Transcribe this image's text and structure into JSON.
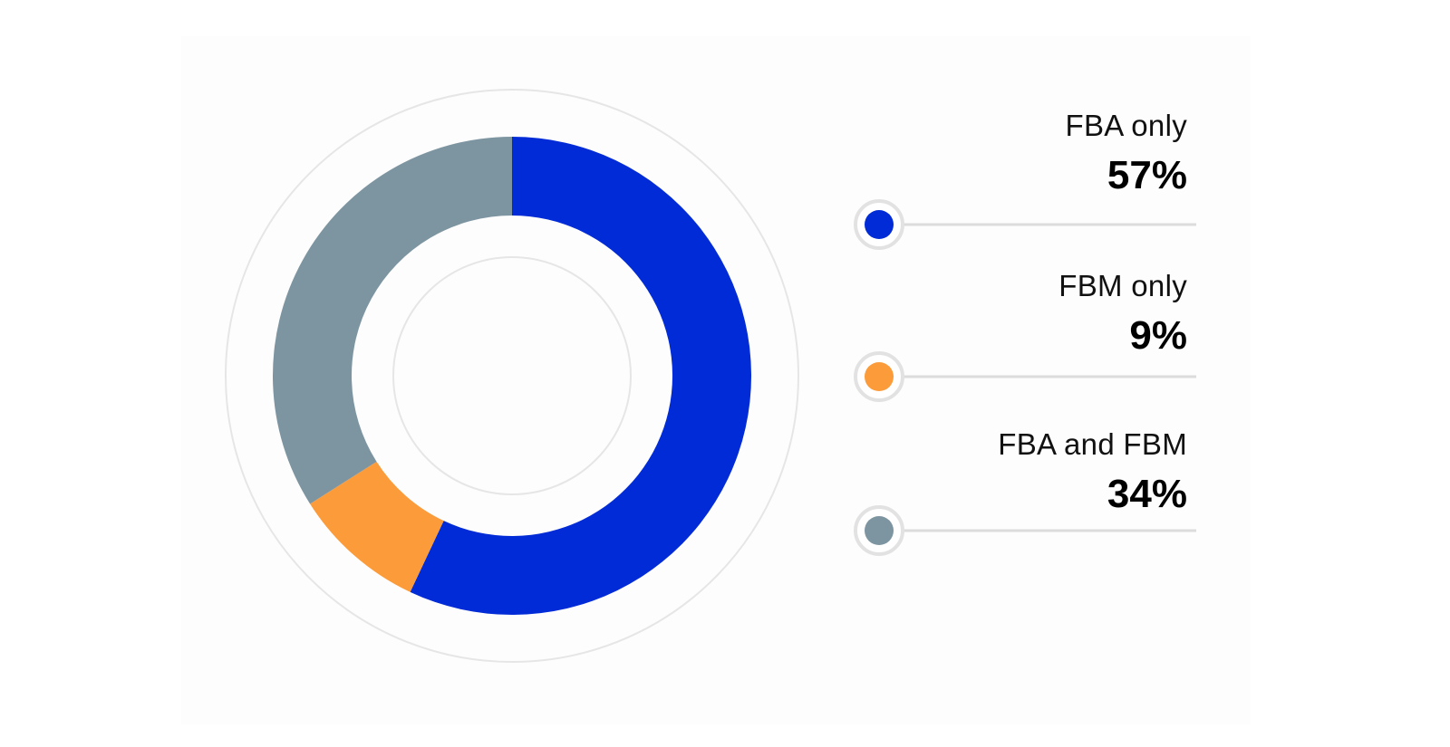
{
  "chart_data": {
    "type": "pie",
    "style": "donut",
    "title": "",
    "slices": [
      {
        "label": "FBA only",
        "value": 57,
        "display": "57%",
        "color": "#002bd6"
      },
      {
        "label": "FBM only",
        "value": 9,
        "display": "9%",
        "color": "#fb9b39"
      },
      {
        "label": "FBA and FBM",
        "value": 34,
        "display": "34%",
        "color": "#7d95a1"
      }
    ],
    "legend_placement": "right"
  },
  "colors": {
    "ring_outline": "#e6e6e6",
    "legend_line": "#dcdcdc",
    "marker_ring": "#e2e2e2",
    "background": "#ffffff"
  }
}
